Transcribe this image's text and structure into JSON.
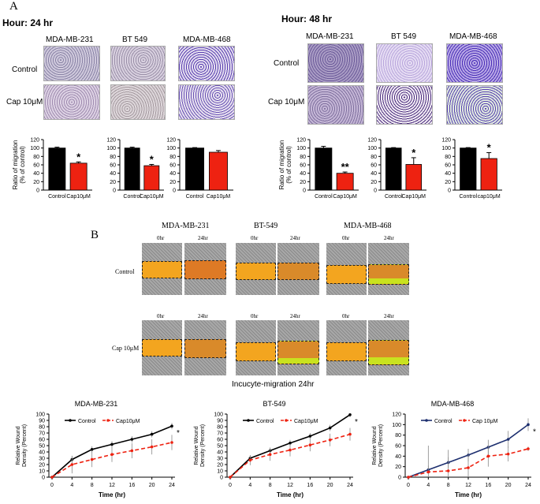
{
  "panel_a": {
    "letter": "A",
    "hour24_title": "Hour: 24 hr",
    "hour48_title": "Hour: 48 hr",
    "cell_lines": [
      "MDA-MB-231",
      "BT 549",
      "MDA-MB-468"
    ],
    "row_labels": [
      "Control",
      "Cap 10μM"
    ],
    "y_axis_label_line1": "Ratio of  migration",
    "y_axis_label_line2": "(% of control)"
  },
  "panel_b": {
    "letter": "B",
    "cell_lines": [
      "MDA-MB-231",
      "BT-549",
      "MDA-MB-468"
    ],
    "time_labels": [
      "0hr",
      "24hr"
    ],
    "row_labels": [
      "Control",
      "Cap 10μM"
    ],
    "caption": "Incucyte-migration 24hr"
  },
  "colors": {
    "control": "#000000",
    "treated": "#ee2211",
    "wound": "#f3a51f",
    "wound_dark": "#d98a2a",
    "purple": "#7a5aa8"
  },
  "chart_data": [
    {
      "type": "bar",
      "title": "24 hr MDA-MB-231",
      "categories": [
        "Control",
        "Cap10μM"
      ],
      "values": [
        100,
        64
      ],
      "errors": [
        2,
        3
      ],
      "significance": [
        "",
        "*"
      ],
      "ylim": [
        0,
        120
      ],
      "yticks": [
        0,
        20,
        40,
        60,
        80,
        100,
        120
      ]
    },
    {
      "type": "bar",
      "title": "24 hr BT 549",
      "categories": [
        "Control",
        "Cap10μM"
      ],
      "values": [
        100,
        58
      ],
      "errors": [
        2,
        3
      ],
      "significance": [
        "",
        "*"
      ],
      "ylim": [
        0,
        120
      ],
      "yticks": [
        0,
        20,
        40,
        60,
        80,
        100,
        120
      ]
    },
    {
      "type": "bar",
      "title": "24 hr MDA-MB-468",
      "categories": [
        "Control",
        "Cap10μM"
      ],
      "values": [
        100,
        90
      ],
      "errors": [
        1,
        4
      ],
      "significance": [
        "",
        ""
      ],
      "ylim": [
        0,
        120
      ],
      "yticks": [
        0,
        20,
        40,
        60,
        80,
        100,
        120
      ]
    },
    {
      "type": "bar",
      "title": "48 hr MDA-MB-231",
      "categories": [
        "Control",
        "Cap10μM"
      ],
      "values": [
        100,
        40
      ],
      "errors": [
        4,
        3
      ],
      "significance": [
        "",
        "**"
      ],
      "ylim": [
        0,
        120
      ],
      "yticks": [
        0,
        20,
        40,
        60,
        80,
        100,
        120
      ]
    },
    {
      "type": "bar",
      "title": "48 hr BT 549",
      "categories": [
        "Control",
        "Cap10μM"
      ],
      "values": [
        100,
        61
      ],
      "errors": [
        1,
        16
      ],
      "significance": [
        "",
        "*"
      ],
      "ylim": [
        0,
        120
      ],
      "yticks": [
        0,
        20,
        40,
        60,
        80,
        100,
        120
      ]
    },
    {
      "type": "bar",
      "title": "48 hr MDA-MB-468",
      "categories": [
        "Control",
        "cap10μM"
      ],
      "values": [
        100,
        75
      ],
      "errors": [
        1,
        14
      ],
      "significance": [
        "",
        "*"
      ],
      "ylim": [
        0,
        120
      ],
      "yticks": [
        0,
        20,
        40,
        60,
        80,
        100,
        120
      ]
    },
    {
      "type": "line",
      "title": "MDA-MB-231",
      "x": [
        0,
        4,
        8,
        12,
        16,
        20,
        24
      ],
      "series": [
        {
          "name": "Control",
          "values": [
            0,
            28,
            44,
            52,
            60,
            68,
            81
          ],
          "errors": [
            0,
            5,
            5,
            5,
            5,
            5,
            5
          ]
        },
        {
          "name": "Cap10μM",
          "values": [
            0,
            20,
            28,
            36,
            42,
            48,
            55
          ],
          "errors": [
            0,
            14,
            12,
            12,
            12,
            12,
            12
          ]
        }
      ],
      "xlabel": "Time (hr)",
      "ylabel": "Relative Wound Density (Percent)",
      "ylim": [
        0,
        100
      ],
      "yticks": [
        0,
        10,
        20,
        30,
        40,
        50,
        60,
        70,
        80,
        90,
        100
      ],
      "xticks": [
        0,
        4,
        8,
        12,
        16,
        20,
        24
      ],
      "significance": "*"
    },
    {
      "type": "line",
      "title": "BT-549",
      "x": [
        0,
        4,
        8,
        12,
        16,
        20,
        24
      ],
      "series": [
        {
          "name": "Control",
          "values": [
            0,
            30,
            42,
            54,
            65,
            78,
            99
          ],
          "errors": [
            0,
            4,
            5,
            5,
            5,
            5,
            4
          ]
        },
        {
          "name": "Cap10μM",
          "values": [
            0,
            27,
            36,
            43,
            51,
            59,
            68
          ],
          "errors": [
            0,
            8,
            10,
            10,
            10,
            10,
            10
          ]
        }
      ],
      "xlabel": "Time (hr)",
      "ylabel": "Relative Wound Density (Percent)",
      "ylim": [
        0,
        100
      ],
      "yticks": [
        0,
        10,
        20,
        30,
        40,
        50,
        60,
        70,
        80,
        90,
        100
      ],
      "xticks": [
        0,
        4,
        8,
        12,
        16,
        20,
        24
      ],
      "significance": "*"
    },
    {
      "type": "line",
      "title": "MDA-MB-468",
      "x": [
        0,
        4,
        8,
        12,
        16,
        20,
        24
      ],
      "series": [
        {
          "name": "Control",
          "values": [
            0,
            14,
            28,
            42,
            57,
            72,
            100
          ],
          "errors": [
            0,
            8,
            10,
            12,
            14,
            16,
            12
          ]
        },
        {
          "name": "Cap 10μM",
          "values": [
            0,
            10,
            12,
            18,
            40,
            44,
            54
          ],
          "errors": [
            0,
            50,
            40,
            25,
            20,
            14,
            4
          ]
        }
      ],
      "xlabel": "Time (hr)",
      "ylabel": "Relative Wound Density (Percent)",
      "ylim": [
        0,
        120
      ],
      "yticks": [
        0,
        20,
        40,
        60,
        80,
        100,
        120
      ],
      "xticks": [
        0,
        4,
        8,
        12,
        16,
        20,
        24
      ],
      "significance": "*"
    }
  ]
}
